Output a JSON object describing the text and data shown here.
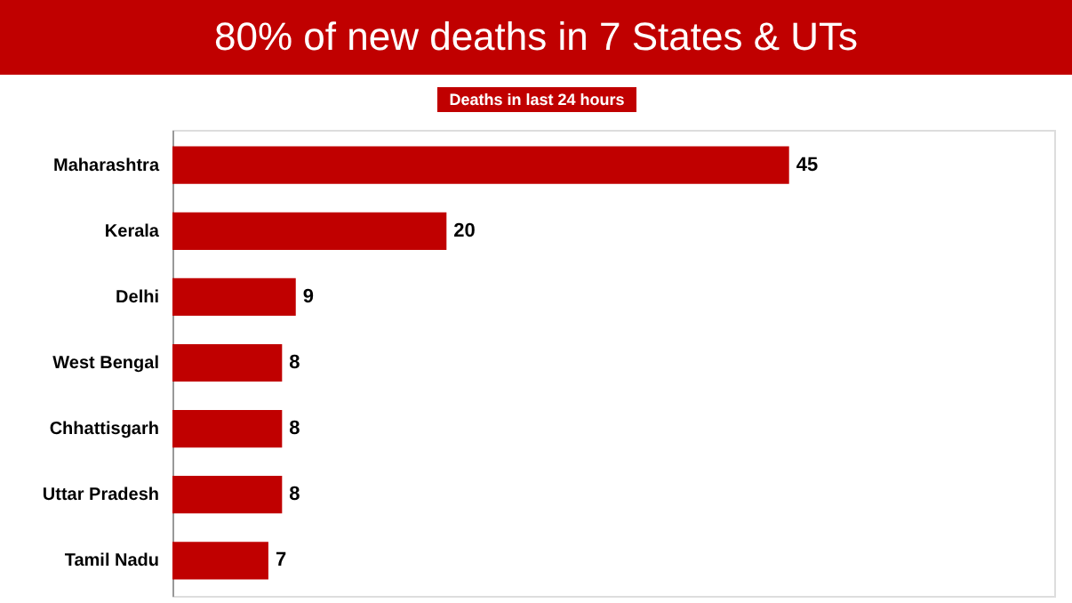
{
  "chart_data": {
    "type": "bar",
    "orientation": "horizontal",
    "title": "80% of new deaths in 7 States & UTs",
    "subtitle": "Deaths in last 24 hours",
    "categories": [
      "Maharashtra",
      "Kerala",
      "Delhi",
      "West Bengal",
      "Chhattisgarh",
      "Uttar Pradesh",
      "Tamil Nadu"
    ],
    "values": [
      45,
      20,
      9,
      8,
      8,
      8,
      7
    ],
    "color": "#c00000",
    "data_labels": true
  }
}
